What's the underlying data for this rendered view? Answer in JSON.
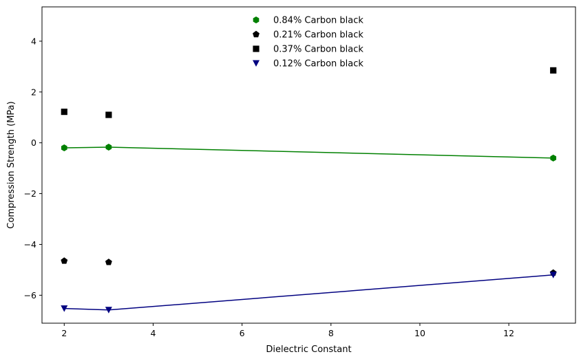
{
  "chart_data": {
    "type": "scatter",
    "xlabel": "Dielectric Constant",
    "ylabel": "Compression Strength (MPa)",
    "xlim": [
      1.5,
      13.5
    ],
    "ylim": [
      -7.1,
      5.35
    ],
    "x_ticks": [
      2,
      4,
      6,
      8,
      10,
      12
    ],
    "x_tick_labels": [
      "2",
      "4",
      "6",
      "8",
      "10",
      "12"
    ],
    "y_ticks": [
      -6,
      -4,
      -2,
      0,
      2,
      4
    ],
    "y_tick_labels": [
      "−6",
      "−4",
      "−2",
      "0",
      "2",
      "4"
    ],
    "legend_position": "top-center",
    "grid": false,
    "series": [
      {
        "name": "0.84% Carbon black",
        "marker": "hexagon",
        "color": "#008000",
        "line": true,
        "x": [
          2,
          3,
          13
        ],
        "y": [
          -0.2,
          -0.17,
          -0.6
        ]
      },
      {
        "name": "0.21% Carbon black",
        "marker": "pentagon",
        "color": "#000000",
        "line": false,
        "x": [
          2,
          3,
          13
        ],
        "y": [
          -4.65,
          -4.7,
          -5.12
        ]
      },
      {
        "name": "0.37% Carbon black",
        "marker": "square",
        "color": "#000000",
        "line": false,
        "x": [
          2,
          3,
          13
        ],
        "y": [
          1.22,
          1.1,
          2.85
        ]
      },
      {
        "name": "0.12% Carbon black",
        "marker": "triangle-down",
        "color": "#000080",
        "line": true,
        "x": [
          2,
          3,
          13
        ],
        "y": [
          -6.52,
          -6.58,
          -5.2
        ]
      }
    ]
  }
}
